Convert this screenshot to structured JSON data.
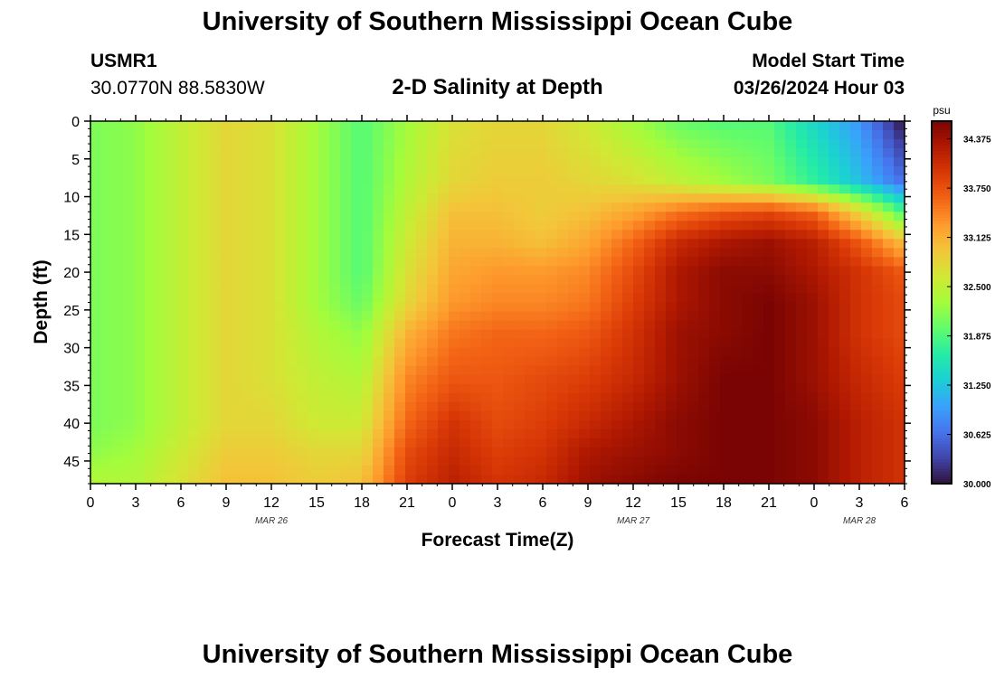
{
  "header": {
    "title": "University of Southern Mississippi Ocean Cube",
    "station_id": "USMR1",
    "coords": "30.0770N  88.5830W",
    "plot_title": "2-D Salinity at Depth",
    "model_start_label": "Model Start Time",
    "model_start_value": "03/26/2024 Hour 03"
  },
  "footer": {
    "title": "University of Southern Mississippi Ocean Cube"
  },
  "chart_data": {
    "type": "heatmap",
    "title": "2-D Salinity at Depth",
    "xlabel": "Forecast Time(Z)",
    "ylabel": "Depth (ft)",
    "x_tick_labels": [
      "0",
      "3",
      "6",
      "9",
      "12",
      "15",
      "18",
      "21",
      "0",
      "3",
      "6",
      "9",
      "12",
      "15",
      "18",
      "21",
      "0",
      "3",
      "6"
    ],
    "date_labels": [
      {
        "label": "MAR 26",
        "tick_index": 4
      },
      {
        "label": "MAR 27",
        "tick_index": 12
      },
      {
        "label": "MAR 28",
        "tick_index": 17
      }
    ],
    "y_ticks": [
      0,
      5,
      10,
      15,
      20,
      25,
      30,
      35,
      40,
      45
    ],
    "y_range": [
      0,
      48
    ],
    "x_range_hours": [
      0,
      54
    ],
    "colorbar": {
      "unit": "psu",
      "min": 30.0,
      "max": 34.6,
      "tick_labels": [
        "34.375",
        "33.750",
        "33.125",
        "32.500",
        "31.875",
        "31.250",
        "30.625",
        "30.000"
      ],
      "colormap": [
        "#30123b",
        "#4145ab",
        "#4675ed",
        "#39a2fc",
        "#1bcfd4",
        "#24eca6",
        "#61fc6c",
        "#a4fc3b",
        "#d1e834",
        "#f3c63a",
        "#fe9b2d",
        "#f36315",
        "#d93806",
        "#b11901",
        "#7a0403"
      ]
    },
    "depth_rows": [
      0,
      8,
      12,
      16,
      20,
      24,
      28,
      34,
      40,
      44,
      48
    ],
    "time_hours": [
      0,
      3,
      6,
      9,
      12,
      15,
      18,
      21,
      24,
      27,
      30,
      33,
      36,
      39,
      42,
      45,
      48,
      51,
      54
    ],
    "values": [
      [
        32.1,
        32.2,
        32.5,
        32.8,
        32.7,
        32.3,
        31.9,
        32.3,
        32.7,
        32.8,
        32.8,
        32.6,
        32.3,
        32.0,
        31.9,
        31.9,
        31.4,
        30.9,
        30.0
      ],
      [
        32.1,
        32.2,
        32.5,
        32.8,
        32.7,
        32.3,
        31.9,
        32.4,
        32.8,
        32.9,
        32.9,
        32.8,
        32.7,
        32.5,
        32.3,
        32.1,
        31.7,
        31.2,
        30.6
      ],
      [
        32.1,
        32.2,
        32.5,
        32.8,
        32.7,
        32.3,
        31.9,
        32.5,
        33.0,
        33.0,
        32.9,
        33.0,
        33.2,
        33.5,
        33.7,
        33.8,
        33.6,
        32.8,
        31.8
      ],
      [
        32.1,
        32.2,
        32.5,
        32.8,
        32.7,
        32.3,
        31.9,
        32.6,
        33.1,
        33.1,
        33.0,
        33.2,
        33.6,
        34.1,
        34.3,
        34.4,
        34.2,
        33.7,
        33.0
      ],
      [
        32.1,
        32.2,
        32.5,
        32.8,
        32.7,
        32.3,
        31.9,
        32.7,
        33.2,
        33.3,
        33.3,
        33.4,
        33.8,
        34.3,
        34.5,
        34.5,
        34.3,
        34.0,
        33.7
      ],
      [
        32.1,
        32.2,
        32.5,
        32.8,
        32.7,
        32.3,
        32.0,
        32.8,
        33.3,
        33.4,
        33.4,
        33.5,
        33.9,
        34.3,
        34.5,
        34.6,
        34.4,
        34.0,
        33.8
      ],
      [
        32.1,
        32.2,
        32.5,
        32.8,
        32.7,
        32.4,
        32.2,
        33.1,
        33.5,
        33.6,
        33.6,
        33.7,
        34.0,
        34.4,
        34.5,
        34.6,
        34.4,
        34.0,
        33.8
      ],
      [
        32.1,
        32.2,
        32.5,
        32.8,
        32.7,
        32.5,
        32.4,
        33.4,
        33.7,
        33.7,
        33.8,
        33.9,
        34.1,
        34.4,
        34.6,
        34.6,
        34.4,
        34.1,
        33.9
      ],
      [
        32.1,
        32.2,
        32.5,
        32.8,
        32.8,
        32.6,
        32.6,
        33.6,
        34.0,
        33.8,
        33.9,
        34.1,
        34.3,
        34.5,
        34.6,
        34.6,
        34.5,
        34.2,
        34.0
      ],
      [
        32.2,
        32.3,
        32.6,
        32.9,
        32.9,
        32.8,
        32.8,
        33.8,
        34.1,
        33.9,
        34.0,
        34.3,
        34.4,
        34.5,
        34.6,
        34.6,
        34.5,
        34.2,
        34.0
      ],
      [
        32.4,
        32.4,
        32.7,
        33.0,
        33.0,
        32.9,
        33.0,
        33.9,
        34.2,
        34.0,
        34.1,
        34.4,
        34.5,
        34.6,
        34.6,
        34.6,
        34.5,
        34.2,
        34.0
      ]
    ]
  }
}
